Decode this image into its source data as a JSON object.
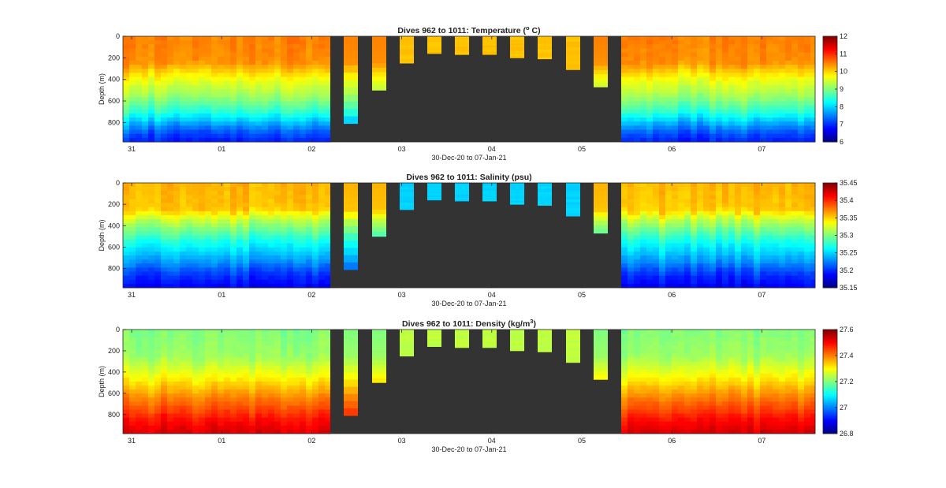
{
  "figure": {
    "colormap": "jet",
    "background": "#ffffff",
    "mask_color": "#333333"
  },
  "chart_data": [
    {
      "type": "heatmap",
      "title_main": "Dives 962 to 1011: Temperature (",
      "title_sup": "o",
      "title_tail": " C)",
      "xlabel": "30-Dec-20 to 07-Jan-21",
      "ylabel": "Depth (m)",
      "x_ticks": [
        "31",
        "01",
        "02",
        "03",
        "04",
        "05",
        "06",
        "07"
      ],
      "y_ticks": [
        "0",
        "200",
        "400",
        "600",
        "800"
      ],
      "ylim": [
        0,
        980
      ],
      "clim": [
        6,
        12
      ],
      "colorbar_ticks": [
        "6",
        "7",
        "8",
        "9",
        "10",
        "11",
        "12"
      ],
      "profile": [
        [
          0,
          10.5
        ],
        [
          250,
          10.4
        ],
        [
          330,
          10.0
        ],
        [
          420,
          9.6
        ],
        [
          520,
          9.3
        ],
        [
          620,
          8.9
        ],
        [
          720,
          8.4
        ],
        [
          820,
          7.7
        ],
        [
          900,
          7.2
        ],
        [
          980,
          6.9
        ]
      ],
      "short_dive_value": 10.1
    },
    {
      "type": "heatmap",
      "title_main": "Dives 962 to 1011: Salinity (psu)",
      "title_sup": "",
      "title_tail": "",
      "xlabel": "30-Dec-20 to 07-Jan-21",
      "ylabel": "Depth (m)",
      "x_ticks": [
        "31",
        "01",
        "02",
        "03",
        "04",
        "05",
        "06",
        "07"
      ],
      "y_ticks": [
        "0",
        "200",
        "400",
        "600",
        "800"
      ],
      "ylim": [
        0,
        980
      ],
      "clim": [
        35.15,
        35.45
      ],
      "colorbar_ticks": [
        "35.15",
        "35.2",
        "35.25",
        "35.3",
        "35.35",
        "35.4",
        "35.45"
      ],
      "profile": [
        [
          0,
          35.36
        ],
        [
          250,
          35.355
        ],
        [
          350,
          35.32
        ],
        [
          450,
          35.295
        ],
        [
          550,
          35.27
        ],
        [
          650,
          35.25
        ],
        [
          750,
          35.23
        ],
        [
          850,
          35.205
        ],
        [
          980,
          35.185
        ]
      ],
      "short_dive_value": 35.25
    },
    {
      "type": "heatmap",
      "title_main": "Dives 962 to 1011: Density (kg/m",
      "title_sup": "3",
      "title_tail": ")",
      "xlabel": "30-Dec-20 to 07-Jan-21",
      "ylabel": "Depth (m)",
      "x_ticks": [
        "31",
        "01",
        "02",
        "03",
        "04",
        "05",
        "06",
        "07"
      ],
      "y_ticks": [
        "0",
        "200",
        "400",
        "600",
        "800"
      ],
      "ylim": [
        0,
        980
      ],
      "clim": [
        26.8,
        27.6
      ],
      "colorbar_ticks": [
        "26.8",
        "27",
        "27.2",
        "27.4",
        "27.6"
      ],
      "profile": [
        [
          0,
          27.2
        ],
        [
          250,
          27.22
        ],
        [
          350,
          27.26
        ],
        [
          450,
          27.3
        ],
        [
          550,
          27.35
        ],
        [
          650,
          27.4
        ],
        [
          750,
          27.44
        ],
        [
          850,
          27.49
        ],
        [
          980,
          27.53
        ]
      ],
      "short_dive_value": 27.25
    }
  ]
}
